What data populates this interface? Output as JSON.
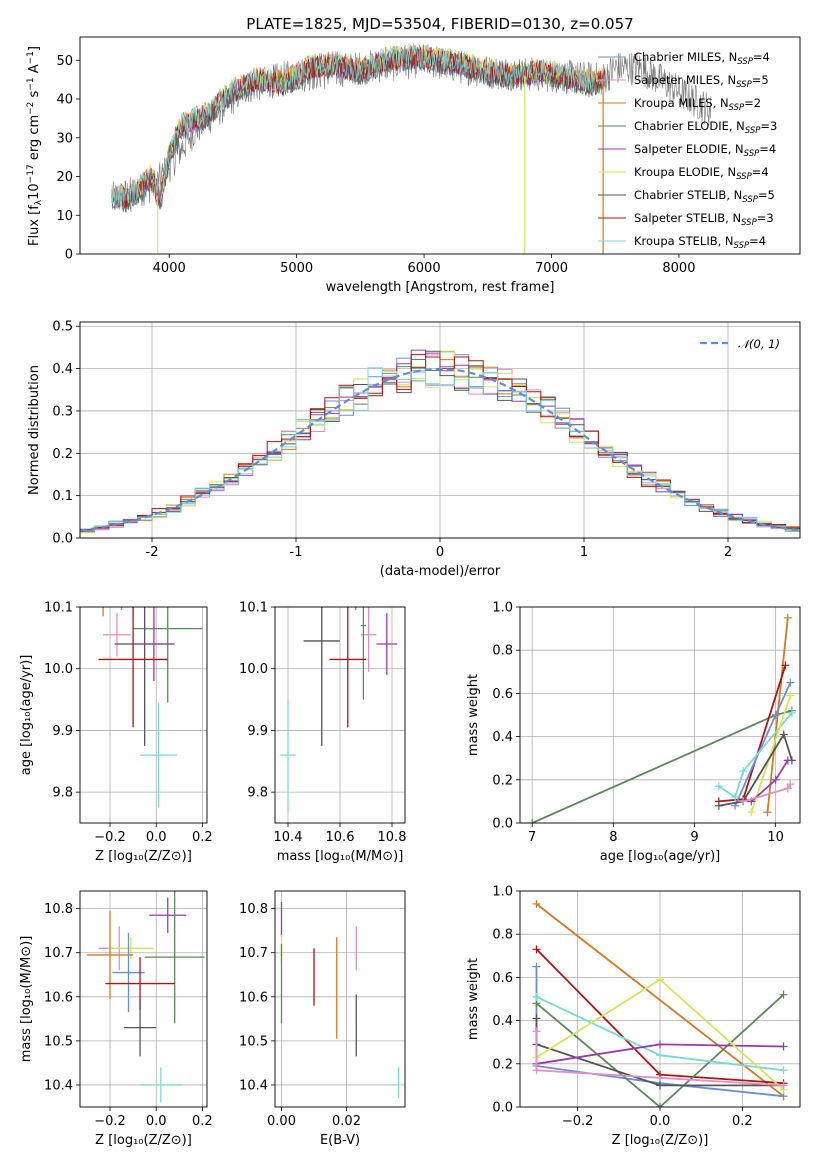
{
  "title": "PLATE=1825, MJD=53504, FIBERID=0130, z=0.057",
  "colors": {
    "chabrier_miles": "#6b8fd6",
    "salpeter_miles": "#e28fc4",
    "kroupa_miles": "#d87820",
    "chabrier_elodie": "#5a8a5a",
    "salpeter_elodie": "#9a3ab0",
    "kroupa_elodie": "#cfe85a",
    "chabrier_stelib": "#555555",
    "salpeter_stelib": "#b01414",
    "kroupa_stelib": "#7ad8d8",
    "normal": "#5b8fd6",
    "grid": "#b0b0b0"
  },
  "chart_data": [
    {
      "id": "spectrum",
      "type": "line",
      "title": "PLATE=1825, MJD=53504, FIBERID=0130, z=0.057",
      "xlabel": "wavelength [Angstrom, rest frame]",
      "ylabel_parts": [
        "Flux [f",
        "λ",
        "10",
        "−17",
        " erg cm",
        "−2",
        " s",
        "−1",
        " A",
        "−1",
        "]"
      ],
      "xlim": [
        3300,
        8950
      ],
      "ylim": [
        0,
        56
      ],
      "xticks": [
        4000,
        5000,
        6000,
        7000,
        8000
      ],
      "yticks": [
        0,
        10,
        20,
        30,
        40,
        50
      ],
      "grid": false,
      "legend_position": "top-right",
      "model_x_range": [
        3550,
        7420
      ],
      "continuum": [
        [
          3550,
          15
        ],
        [
          3700,
          14
        ],
        [
          3850,
          20
        ],
        [
          3930,
          14
        ],
        [
          4000,
          26
        ],
        [
          4100,
          33
        ],
        [
          4300,
          36
        ],
        [
          4500,
          42
        ],
        [
          4700,
          45
        ],
        [
          4900,
          44
        ],
        [
          5100,
          48
        ],
        [
          5300,
          49
        ],
        [
          5500,
          47
        ],
        [
          5700,
          50
        ],
        [
          5900,
          51
        ],
        [
          6100,
          50
        ],
        [
          6300,
          49
        ],
        [
          6500,
          47
        ],
        [
          6700,
          46
        ],
        [
          6900,
          47
        ],
        [
          7100,
          46
        ],
        [
          7300,
          44
        ],
        [
          7420,
          45
        ]
      ],
      "data_continuum": [
        [
          3550,
          14
        ],
        [
          3900,
          18
        ],
        [
          4200,
          32
        ],
        [
          4600,
          43
        ],
        [
          5000,
          46
        ],
        [
          5500,
          48
        ],
        [
          6000,
          50
        ],
        [
          6500,
          47
        ],
        [
          7000,
          46
        ],
        [
          7400,
          45
        ],
        [
          7500,
          48
        ],
        [
          7700,
          48
        ],
        [
          7900,
          44
        ],
        [
          8100,
          40
        ],
        [
          8250,
          37
        ]
      ],
      "legend": [
        {
          "key": "chabrier_miles",
          "base": "Chabrier MILES, N",
          "sub": "SSP",
          "suffix": "=4"
        },
        {
          "key": "salpeter_miles",
          "base": "Salpeter MILES, N",
          "sub": "SSP",
          "suffix": "=5"
        },
        {
          "key": "kroupa_miles",
          "base": "Kroupa MILES, N",
          "sub": "SSP",
          "suffix": "=2"
        },
        {
          "key": "chabrier_elodie",
          "base": "Chabrier ELODIE, N",
          "sub": "SSP",
          "suffix": "=3"
        },
        {
          "key": "salpeter_elodie",
          "base": "Salpeter ELODIE, N",
          "sub": "SSP",
          "suffix": "=4"
        },
        {
          "key": "kroupa_elodie",
          "base": "Kroupa ELODIE, N",
          "sub": "SSP",
          "suffix": "=4"
        },
        {
          "key": "chabrier_stelib",
          "base": "Chabrier STELIB, N",
          "sub": "SSP",
          "suffix": "=5"
        },
        {
          "key": "salpeter_stelib",
          "base": "Salpeter STELIB, N",
          "sub": "SSP",
          "suffix": "=3"
        },
        {
          "key": "kroupa_stelib",
          "base": "Kroupa STELIB, N",
          "sub": "SSP",
          "suffix": "=4"
        }
      ]
    },
    {
      "id": "residuals",
      "type": "histogram",
      "xlabel": "(data-model)/error",
      "ylabel": "Normed distribution",
      "xlim": [
        -2.5,
        2.5
      ],
      "ylim": [
        0,
        0.51
      ],
      "xticks": [
        -2,
        -1,
        0,
        1,
        2
      ],
      "yticks": [
        0.0,
        0.1,
        0.2,
        0.3,
        0.4,
        0.5
      ],
      "grid": true,
      "bin_width": 0.1,
      "legend_position": "top-right",
      "legend_label": "𝒩(0, 1)"
    },
    {
      "id": "age_vs_Z",
      "type": "errorbar",
      "xlabel": "Z [log₁₀(Z/Z⊙)]",
      "ylabel": "age  [log₁₀(age/yr)]",
      "xlim": [
        -0.33,
        0.22
      ],
      "ylim": [
        9.75,
        10.1
      ],
      "xticks": [
        -0.2,
        0.0,
        0.2
      ],
      "xticklabels": [
        "−0.2",
        "0.0",
        "0.2"
      ],
      "yticks": [
        9.8,
        9.9,
        10.0,
        10.1
      ],
      "grid": true,
      "points": [
        {
          "key": "kroupa_miles",
          "x": -0.23,
          "xerr": 0.08,
          "y": 10.13,
          "yerr": 0.045
        },
        {
          "key": "chabrier_miles",
          "x": -0.15,
          "xerr": 0.05,
          "y": 10.12,
          "yerr": 0.025
        },
        {
          "key": "kroupa_elodie",
          "x": -0.1,
          "xerr": 0.06,
          "y": 10.11,
          "yerr": 0.03
        },
        {
          "key": "salpeter_miles",
          "x": -0.17,
          "xerr": 0.06,
          "y": 10.055,
          "yerr": 0.035
        },
        {
          "key": "chabrier_elodie",
          "x": 0.05,
          "xerr": 0.15,
          "y": 10.065,
          "yerr": 0.12
        },
        {
          "key": "chabrier_stelib",
          "x": -0.05,
          "xerr": 0.13,
          "y": 10.04,
          "yerr": 0.165
        },
        {
          "key": "salpeter_elodie",
          "x": -0.01,
          "xerr": 0.08,
          "y": 10.04,
          "yerr": 0.06
        },
        {
          "key": "salpeter_stelib",
          "x": -0.1,
          "xerr": 0.15,
          "y": 10.015,
          "yerr": 0.11
        },
        {
          "key": "kroupa_stelib",
          "x": 0.01,
          "xerr": 0.08,
          "y": 9.86,
          "yerr": 0.085
        }
      ]
    },
    {
      "id": "age_vs_mass",
      "type": "errorbar",
      "xlabel": "mass [log₁₀(M/M⊙)]",
      "ylabel": "",
      "xlim": [
        10.35,
        10.85
      ],
      "ylim": [
        9.75,
        10.1
      ],
      "xticks": [
        10.4,
        10.6,
        10.8
      ],
      "xticklabels": [
        "10.4",
        "10.6",
        "10.8"
      ],
      "yticks": [
        9.8,
        9.9,
        10.0,
        10.1
      ],
      "grid": true,
      "points": [
        {
          "key": "kroupa_miles",
          "x": 10.69,
          "xerr": 0.11,
          "y": 10.13,
          "yerr": 0.02
        },
        {
          "key": "chabrier_miles",
          "x": 10.66,
          "xerr": 0.05,
          "y": 10.12,
          "yerr": 0.025
        },
        {
          "key": "kroupa_elodie",
          "x": 10.71,
          "xerr": 0.02,
          "y": 10.1,
          "yerr": 0.02
        },
        {
          "key": "salpeter_miles",
          "x": 10.71,
          "xerr": 0.03,
          "y": 10.055,
          "yerr": 0.06
        },
        {
          "key": "chabrier_elodie",
          "x": 10.69,
          "xerr": 0.01,
          "y": 10.07,
          "yerr": 0.12
        },
        {
          "key": "salpeter_elodie",
          "x": 10.78,
          "xerr": 0.04,
          "y": 10.04,
          "yerr": 0.05
        },
        {
          "key": "chabrier_stelib",
          "x": 10.53,
          "xerr": 0.07,
          "y": 10.045,
          "yerr": 0.17
        },
        {
          "key": "salpeter_stelib",
          "x": 10.63,
          "xerr": 0.07,
          "y": 10.015,
          "yerr": 0.11
        },
        {
          "key": "kroupa_stelib",
          "x": 10.4,
          "xerr": 0.03,
          "y": 9.86,
          "yerr": 0.09
        }
      ]
    },
    {
      "id": "weight_vs_age",
      "type": "line",
      "xlabel": "age  [log₁₀(age/yr)]",
      "ylabel": "mass weight",
      "xlim": [
        6.85,
        10.3
      ],
      "ylim": [
        0,
        1.0
      ],
      "xticks": [
        7,
        8,
        9,
        10
      ],
      "yticks": [
        0.0,
        0.2,
        0.4,
        0.6,
        0.8,
        1.0
      ],
      "grid": true,
      "series": [
        {
          "key": "chabrier_elodie",
          "x": [
            7.0,
            10.0,
            10.2
          ],
          "y": [
            0.0,
            0.5,
            0.52
          ]
        },
        {
          "key": "kroupa_miles",
          "x": [
            9.9,
            10.15
          ],
          "y": [
            0.05,
            0.95
          ]
        },
        {
          "key": "salpeter_stelib",
          "x": [
            9.3,
            9.6,
            10.12
          ],
          "y": [
            0.1,
            0.11,
            0.73
          ]
        },
        {
          "key": "chabrier_miles",
          "x": [
            9.5,
            10.0,
            10.18
          ],
          "y": [
            0.08,
            0.5,
            0.65
          ]
        },
        {
          "key": "kroupa_stelib",
          "x": [
            9.3,
            9.5,
            9.6,
            10.2
          ],
          "y": [
            0.17,
            0.12,
            0.24,
            0.51
          ]
        },
        {
          "key": "kroupa_elodie",
          "x": [
            9.7,
            10.18
          ],
          "y": [
            0.05,
            0.59
          ]
        },
        {
          "key": "chabrier_stelib",
          "x": [
            9.3,
            9.6,
            10.1,
            10.2
          ],
          "y": [
            0.08,
            0.1,
            0.41,
            0.29
          ]
        },
        {
          "key": "salpeter_elodie",
          "x": [
            9.7,
            10.0,
            10.15
          ],
          "y": [
            0.1,
            0.2,
            0.29
          ]
        },
        {
          "key": "salpeter_miles",
          "x": [
            9.6,
            10.15,
            10.18
          ],
          "y": [
            0.1,
            0.16,
            0.18
          ]
        }
      ]
    },
    {
      "id": "mass_vs_Z",
      "type": "errorbar",
      "xlabel": "Z [log₁₀(Z/Z⊙)]",
      "ylabel": "mass [log₁₀(M/M⊙)]",
      "xlim": [
        -0.33,
        0.22
      ],
      "ylim": [
        10.35,
        10.84
      ],
      "xticks": [
        -0.2,
        0.0,
        0.2
      ],
      "xticklabels": [
        "−0.2",
        "0.0",
        "0.2"
      ],
      "yticks": [
        10.4,
        10.5,
        10.6,
        10.7,
        10.8
      ],
      "grid": true,
      "points": [
        {
          "key": "salpeter_elodie",
          "x": 0.05,
          "xerr": 0.08,
          "y": 10.785,
          "yerr": 0.04
        },
        {
          "key": "salpeter_miles",
          "x": -0.16,
          "xerr": 0.09,
          "y": 10.71,
          "yerr": 0.05
        },
        {
          "key": "kroupa_elodie",
          "x": -0.11,
          "xerr": 0.1,
          "y": 10.71,
          "yerr": 0.025
        },
        {
          "key": "kroupa_miles",
          "x": -0.2,
          "xerr": 0.1,
          "y": 10.695,
          "yerr": 0.1
        },
        {
          "key": "chabrier_elodie",
          "x": 0.08,
          "xerr": 0.13,
          "y": 10.69,
          "yerr": 0.15
        },
        {
          "key": "chabrier_miles",
          "x": -0.12,
          "xerr": 0.07,
          "y": 10.655,
          "yerr": 0.09
        },
        {
          "key": "salpeter_stelib",
          "x": -0.07,
          "xerr": 0.15,
          "y": 10.63,
          "yerr": 0.06
        },
        {
          "key": "chabrier_stelib",
          "x": -0.07,
          "xerr": 0.07,
          "y": 10.53,
          "yerr": 0.065
        },
        {
          "key": "kroupa_stelib",
          "x": 0.02,
          "xerr": 0.09,
          "y": 10.4,
          "yerr": 0.04
        }
      ]
    },
    {
      "id": "mass_vs_ebv",
      "type": "errorbar",
      "xlabel": "E(B-V)",
      "ylabel": "",
      "xlim": [
        -0.002,
        0.038
      ],
      "ylim": [
        10.35,
        10.84
      ],
      "xticks": [
        0.0,
        0.02
      ],
      "xticklabels": [
        "0.00",
        "0.02"
      ],
      "yticks": [
        10.4,
        10.5,
        10.6,
        10.7,
        10.8
      ],
      "grid": true,
      "points": [
        {
          "key": "salpeter_elodie",
          "x": 0.0,
          "xerr": 0,
          "y": 10.775,
          "yerr": 0.04
        },
        {
          "key": "kroupa_elodie",
          "x": 0.0,
          "xerr": 0,
          "y": 10.71,
          "yerr": 0.03
        },
        {
          "key": "chabrier_elodie",
          "x": 0.0,
          "xerr": 0,
          "y": 10.63,
          "yerr": 0.09
        },
        {
          "key": "salpeter_stelib",
          "x": 0.01,
          "xerr": 0,
          "y": 10.645,
          "yerr": 0.065
        },
        {
          "key": "kroupa_miles",
          "x": 0.017,
          "xerr": 0,
          "y": 10.62,
          "yerr": 0.115
        },
        {
          "key": "salpeter_miles",
          "x": 0.023,
          "xerr": 0,
          "y": 10.71,
          "yerr": 0.05
        },
        {
          "key": "chabrier_stelib",
          "x": 0.023,
          "xerr": 0,
          "y": 10.535,
          "yerr": 0.07
        },
        {
          "key": "kroupa_stelib",
          "x": 0.036,
          "xerr": 0,
          "y": 10.405,
          "yerr": 0.035
        }
      ]
    },
    {
      "id": "weight_vs_Z",
      "type": "line",
      "xlabel": "Z [log₁₀(Z/Z⊙)]",
      "ylabel": "mass weight",
      "xlim": [
        -0.34,
        0.34
      ],
      "ylim": [
        0,
        1.0
      ],
      "xticks": [
        -0.2,
        0.0,
        0.2
      ],
      "xticklabels": [
        "−0.2",
        "0.0",
        "0.2"
      ],
      "yticks": [
        0.0,
        0.2,
        0.4,
        0.6,
        0.8,
        1.0
      ],
      "grid": true,
      "series": [
        {
          "key": "kroupa_miles",
          "x": [
            -0.3,
            0.3
          ],
          "y": [
            0.94,
            0.05
          ]
        },
        {
          "key": "salpeter_stelib",
          "x": [
            -0.3,
            0.0,
            0.3
          ],
          "y": [
            0.73,
            0.15,
            0.11
          ]
        },
        {
          "key": "chabrier_miles",
          "x": [
            -0.3,
            -0.3,
            0.0,
            0.3
          ],
          "y": [
            0.65,
            0.19,
            0.11,
            0.05
          ]
        },
        {
          "key": "chabrier_elodie",
          "x": [
            -0.3,
            0.0,
            0.3
          ],
          "y": [
            0.48,
            0.0,
            0.52
          ]
        },
        {
          "key": "kroupa_stelib",
          "x": [
            -0.3,
            0.0,
            0.3
          ],
          "y": [
            0.51,
            0.24,
            0.17
          ]
        },
        {
          "key": "chabrier_stelib",
          "x": [
            -0.3,
            -0.3,
            0.0,
            0.3
          ],
          "y": [
            0.41,
            0.29,
            0.1,
            0.1
          ]
        },
        {
          "key": "salpeter_elodie",
          "x": [
            -0.3,
            0.0,
            0.3
          ],
          "y": [
            0.2,
            0.29,
            0.28
          ]
        },
        {
          "key": "kroupa_elodie",
          "x": [
            -0.3,
            0.0,
            0.3
          ],
          "y": [
            0.23,
            0.59,
            0.08
          ]
        },
        {
          "key": "salpeter_miles",
          "x": [
            -0.3,
            -0.3,
            0.3
          ],
          "y": [
            0.35,
            0.17,
            0.1
          ]
        }
      ]
    }
  ]
}
